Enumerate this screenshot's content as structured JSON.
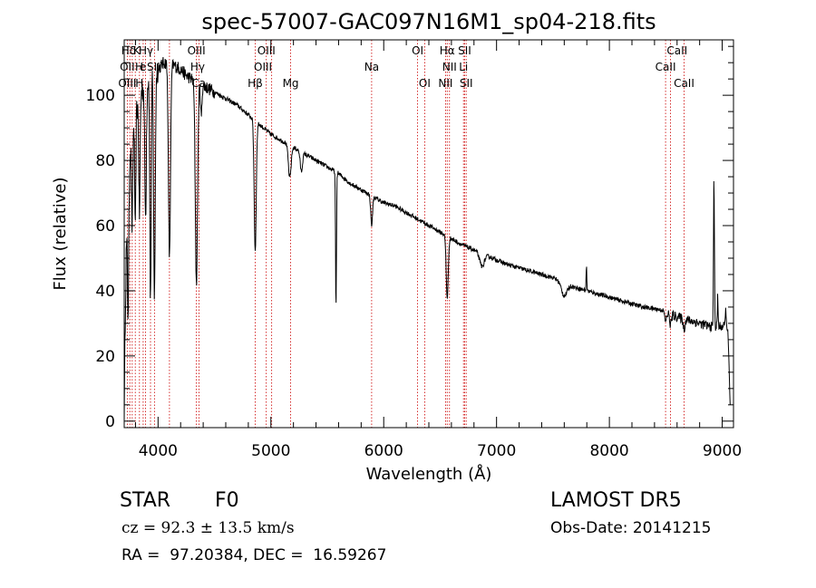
{
  "chart_data": {
    "type": "line",
    "title": "spec-57007-GAC097N16M1_sp04-218.fits",
    "xlabel": "Wavelength (Å)",
    "ylabel": "Flux (relative)",
    "xlim": [
      3700,
      9100
    ],
    "ylim": [
      -2,
      117
    ],
    "xticks": [
      4000,
      5000,
      6000,
      7000,
      8000,
      9000
    ],
    "yticks": [
      0,
      20,
      40,
      60,
      80,
      100
    ],
    "grid": false,
    "line_color": "#000000",
    "marker_color": "#cc0000",
    "continuum": [
      [
        3700,
        0
      ],
      [
        3710,
        35
      ],
      [
        3720,
        55
      ],
      [
        3740,
        78
      ],
      [
        3760,
        88
      ],
      [
        3780,
        92
      ],
      [
        3800,
        95
      ],
      [
        3830,
        98
      ],
      [
        3860,
        102
      ],
      [
        3900,
        104
      ],
      [
        3950,
        107
      ],
      [
        4000,
        108
      ],
      [
        4050,
        110
      ],
      [
        4100,
        110
      ],
      [
        4150,
        109
      ],
      [
        4200,
        108
      ],
      [
        4250,
        106
      ],
      [
        4300,
        105
      ],
      [
        4350,
        104
      ],
      [
        4400,
        103
      ],
      [
        4500,
        101
      ],
      [
        4600,
        99
      ],
      [
        4700,
        97
      ],
      [
        4800,
        94
      ],
      [
        4900,
        91
      ],
      [
        5000,
        88
      ],
      [
        5100,
        86
      ],
      [
        5200,
        84
      ],
      [
        5300,
        82
      ],
      [
        5400,
        80
      ],
      [
        5500,
        78
      ],
      [
        5600,
        76
      ],
      [
        5700,
        73
      ],
      [
        5800,
        71
      ],
      [
        5900,
        69
      ],
      [
        6000,
        67
      ],
      [
        6100,
        66
      ],
      [
        6200,
        64
      ],
      [
        6300,
        62
      ],
      [
        6400,
        60
      ],
      [
        6500,
        58
      ],
      [
        6600,
        56
      ],
      [
        6700,
        54
      ],
      [
        6800,
        52.5
      ],
      [
        6900,
        51
      ],
      [
        7000,
        49.5
      ],
      [
        7100,
        48
      ],
      [
        7200,
        47
      ],
      [
        7300,
        46
      ],
      [
        7400,
        45
      ],
      [
        7500,
        44
      ],
      [
        7600,
        42.5
      ],
      [
        7700,
        41
      ],
      [
        7800,
        40
      ],
      [
        7900,
        39
      ],
      [
        8000,
        38
      ],
      [
        8100,
        37
      ],
      [
        8200,
        36
      ],
      [
        8300,
        35
      ],
      [
        8400,
        34.5
      ],
      [
        8480,
        34
      ],
      [
        8520,
        33
      ],
      [
        8600,
        32
      ],
      [
        8700,
        31
      ],
      [
        8800,
        30
      ],
      [
        8900,
        29
      ],
      [
        9000,
        29
      ],
      [
        9050,
        29
      ],
      [
        9070,
        5
      ]
    ],
    "features": [
      [
        3735,
        38,
        6
      ],
      [
        3770,
        30,
        6
      ],
      [
        3798,
        38,
        5
      ],
      [
        3835,
        35,
        6
      ],
      [
        3889,
        40,
        7
      ],
      [
        3933,
        70,
        6
      ],
      [
        3968,
        70,
        7
      ],
      [
        4101,
        60,
        9
      ],
      [
        4340,
        62,
        10
      ],
      [
        4383,
        10,
        6
      ],
      [
        4861,
        40,
        9
      ],
      [
        5167,
        10,
        12
      ],
      [
        5270,
        6,
        10
      ],
      [
        5577,
        42,
        4
      ],
      [
        5893,
        9,
        8
      ],
      [
        6563,
        19,
        9
      ],
      [
        6870,
        4,
        20
      ],
      [
        7600,
        4,
        25
      ],
      [
        8498,
        3,
        8
      ],
      [
        8542,
        3,
        8
      ],
      [
        8662,
        3,
        8
      ]
    ],
    "spikes": [
      [
        7797,
        8,
        3
      ],
      [
        8927,
        45,
        4
      ],
      [
        8960,
        10,
        3
      ],
      [
        9030,
        6,
        3
      ]
    ],
    "line_markers": [
      {
        "label": "Hδ",
        "x": 3740,
        "row": 0
      },
      {
        "label": "K",
        "x": 3810,
        "row": 0
      },
      {
        "label": "Hγ",
        "x": 3893,
        "row": 0
      },
      {
        "label": "OIII",
        "x": 4340,
        "row": 0
      },
      {
        "label": "OIII",
        "x": 4960,
        "row": 0
      },
      {
        "label": "OI",
        "x": 6300,
        "row": 0
      },
      {
        "label": "Hα",
        "x": 6562,
        "row": 0
      },
      {
        "label": "SII",
        "x": 6717,
        "row": 0
      },
      {
        "label": "CaII",
        "x": 8600,
        "row": 0
      },
      {
        "label": "OII",
        "x": 3727,
        "row": 1
      },
      {
        "label": "H",
        "x": 3833,
        "row": 1
      },
      {
        "label": "e",
        "x": 3865,
        "row": 1
      },
      {
        "label": "SII",
        "x": 3960,
        "row": 1
      },
      {
        "label": "Hγ",
        "x": 4350,
        "row": 1
      },
      {
        "label": "OIII",
        "x": 4930,
        "row": 1
      },
      {
        "label": "Na",
        "x": 5893,
        "row": 1
      },
      {
        "label": "NII",
        "x": 6583,
        "row": 1
      },
      {
        "label": "Li",
        "x": 6707,
        "row": 1
      },
      {
        "label": "CaII",
        "x": 8498,
        "row": 1
      },
      {
        "label": "OIII",
        "x": 3727,
        "row": 2
      },
      {
        "label": "H",
        "x": 3835,
        "row": 2
      },
      {
        "label": "Ca",
        "x": 4360,
        "row": 2
      },
      {
        "label": "Hβ",
        "x": 4861,
        "row": 2
      },
      {
        "label": "Mg",
        "x": 5175,
        "row": 2
      },
      {
        "label": "OI",
        "x": 6363,
        "row": 2
      },
      {
        "label": "NII",
        "x": 6548,
        "row": 2
      },
      {
        "label": "SII",
        "x": 6731,
        "row": 2
      },
      {
        "label": "CaII",
        "x": 8662,
        "row": 2
      }
    ],
    "marker_lines": [
      3727,
      3750,
      3771,
      3798,
      3835,
      3868,
      3889,
      3933,
      3968,
      4101,
      4340,
      4363,
      4861,
      4959,
      5007,
      5175,
      5893,
      6300,
      6363,
      6548,
      6563,
      6583,
      6707,
      6717,
      6731,
      8498,
      8542,
      8662
    ]
  },
  "info": {
    "object_class": "STAR",
    "subclass": "F0",
    "survey": "LAMOST DR5",
    "redshift": "cz = 92.3 ± 13.5 km/s",
    "obs_date": "Obs-Date: 20141215",
    "coords": "RA =  97.20384, DEC =  16.59267"
  }
}
